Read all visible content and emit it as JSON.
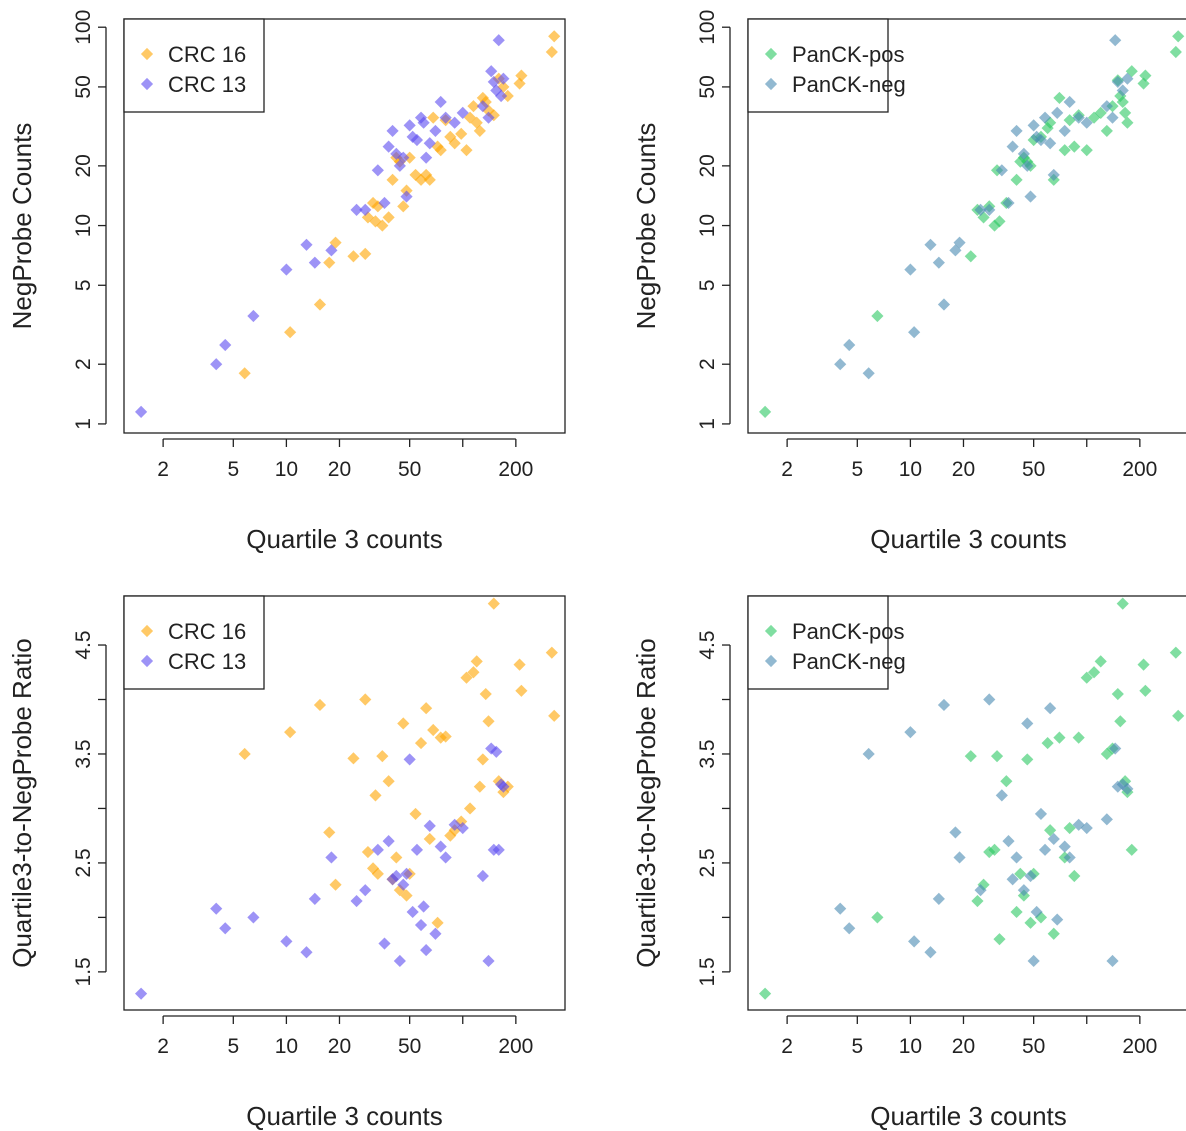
{
  "chart_data": [
    {
      "type": "scatter",
      "xlabel": "Quartile 3 counts",
      "ylabel": "NegProbe Counts",
      "xscale": "log",
      "yscale": "log",
      "xlim": [
        1.2,
        380
      ],
      "ylim": [
        0.9,
        110
      ],
      "xticks": [
        "2",
        "5",
        "10",
        "20",
        "50",
        "200"
      ],
      "yticks": [
        "1",
        "2",
        "5",
        "10",
        "20",
        "50",
        "100"
      ],
      "legend_position": "top-left",
      "series": [
        {
          "name": "CRC 16",
          "color": "#FFA500",
          "x": [
            5.8,
            10.5,
            15.5,
            17.5,
            19,
            24,
            28,
            29,
            31,
            32,
            33,
            35,
            38,
            40,
            42,
            44,
            46,
            48,
            50,
            54,
            58,
            62,
            65,
            68,
            72,
            75,
            80,
            85,
            90,
            98,
            105,
            110,
            115,
            120,
            125,
            130,
            135,
            140,
            150,
            160,
            170,
            180,
            210,
            215,
            320,
            330
          ],
          "y": [
            1.8,
            2.9,
            4.0,
            6.5,
            8.2,
            7.0,
            7.2,
            11,
            13,
            10.5,
            12.5,
            10,
            11,
            17,
            22,
            21,
            12.5,
            15,
            22,
            18,
            17,
            18,
            17,
            35,
            25,
            24,
            34,
            28,
            26,
            29,
            24,
            35,
            40,
            33,
            30,
            44,
            42,
            38,
            36,
            55,
            50,
            45,
            52,
            57,
            75,
            90
          ]
        },
        {
          "name": "CRC 13",
          "color": "#5B4BF0",
          "x": [
            1.5,
            4.0,
            4.5,
            6.5,
            10,
            13,
            14.5,
            18,
            25,
            28,
            33,
            36,
            38,
            40,
            42,
            44,
            46,
            48,
            50,
            52,
            55,
            58,
            60,
            62,
            65,
            70,
            75,
            80,
            90,
            100,
            130,
            140,
            145,
            150,
            155,
            160,
            165,
            170
          ],
          "y": [
            1.15,
            2.0,
            2.5,
            3.5,
            6.0,
            8.0,
            6.5,
            7.5,
            12,
            12,
            19,
            13,
            25,
            30,
            23,
            20,
            22,
            14,
            32,
            28,
            27,
            35,
            33,
            22,
            26,
            30,
            42,
            35,
            33,
            37,
            40,
            35,
            60,
            53,
            48,
            86,
            45,
            55
          ]
        }
      ]
    },
    {
      "type": "scatter",
      "xlabel": "Quartile 3 counts",
      "ylabel": "NegProbe Counts",
      "xscale": "log",
      "yscale": "log",
      "xlim": [
        1.2,
        380
      ],
      "ylim": [
        0.9,
        110
      ],
      "xticks": [
        "2",
        "5",
        "10",
        "20",
        "50",
        "200"
      ],
      "yticks": [
        "1",
        "2",
        "5",
        "10",
        "20",
        "50",
        "100"
      ],
      "legend_position": "top-left",
      "series": [
        {
          "name": "PanCK-pos",
          "color": "#2CC862",
          "x": [
            1.5,
            6.5,
            22,
            24,
            26,
            28,
            30,
            31,
            32,
            35,
            40,
            42,
            44,
            46,
            48,
            50,
            55,
            60,
            62,
            65,
            70,
            75,
            80,
            85,
            90,
            100,
            110,
            120,
            130,
            140,
            150,
            155,
            160,
            165,
            170,
            180,
            210,
            215,
            320,
            330
          ],
          "y": [
            1.15,
            3.5,
            7.0,
            12,
            11,
            12.5,
            10,
            19,
            10.5,
            13,
            17,
            21,
            22,
            21,
            20,
            27,
            28,
            31,
            33,
            17,
            44,
            24,
            34,
            25,
            36,
            24,
            35,
            37,
            30,
            40,
            54,
            45,
            42,
            37,
            33,
            60,
            52,
            57,
            75,
            90
          ]
        },
        {
          "name": "PanCK-neg",
          "color": "#4A8AB3",
          "x": [
            4.0,
            4.5,
            5.8,
            10,
            10.5,
            13,
            14.5,
            15.5,
            18,
            19,
            25,
            28,
            33,
            36,
            38,
            40,
            44,
            46,
            48,
            50,
            52,
            55,
            58,
            62,
            65,
            68,
            75,
            80,
            90,
            100,
            130,
            140,
            145,
            150,
            160,
            170
          ],
          "y": [
            2.0,
            2.5,
            1.8,
            6.0,
            2.9,
            8.0,
            6.5,
            4.0,
            7.5,
            8.2,
            12,
            12,
            19,
            13,
            25,
            30,
            23,
            20,
            14,
            32,
            28,
            27,
            35,
            26,
            18,
            37,
            30,
            42,
            35,
            33,
            40,
            35,
            86,
            53,
            48,
            55
          ]
        }
      ]
    },
    {
      "type": "scatter",
      "xlabel": "Quartile 3 counts",
      "ylabel": "Quartile3-to-NegProbe Ratio",
      "xscale": "log",
      "yscale": "linear",
      "xlim": [
        1.2,
        380
      ],
      "ylim": [
        1.15,
        4.95
      ],
      "xticks": [
        "2",
        "5",
        "10",
        "20",
        "50",
        "200"
      ],
      "yticks": [
        "1.5",
        "2.5",
        "3.5",
        "4.5"
      ],
      "legend_position": "top-left",
      "series": [
        {
          "name": "CRC 16",
          "color": "#FFA500",
          "x": [
            5.8,
            10.5,
            15.5,
            17.5,
            19,
            24,
            28,
            29,
            31,
            32,
            33,
            35,
            38,
            40,
            42,
            44,
            46,
            48,
            50,
            54,
            58,
            62,
            65,
            68,
            72,
            75,
            80,
            85,
            90,
            98,
            105,
            110,
            115,
            120,
            125,
            130,
            135,
            140,
            150,
            160,
            170,
            180,
            210,
            215,
            320,
            330
          ],
          "y": [
            3.5,
            3.7,
            3.95,
            2.78,
            2.3,
            3.46,
            4.0,
            2.6,
            2.45,
            3.12,
            2.4,
            3.48,
            3.25,
            2.35,
            2.55,
            2.25,
            3.78,
            2.2,
            2.4,
            2.95,
            3.6,
            3.92,
            2.72,
            3.72,
            1.95,
            3.65,
            3.66,
            2.75,
            2.8,
            2.88,
            4.2,
            3.0,
            4.25,
            4.35,
            3.2,
            3.45,
            4.05,
            3.8,
            4.88,
            3.25,
            3.15,
            3.2,
            4.32,
            4.08,
            4.43,
            3.85
          ]
        },
        {
          "name": "CRC 13",
          "color": "#5B4BF0",
          "x": [
            1.5,
            4.0,
            4.5,
            6.5,
            10,
            13,
            14.5,
            18,
            25,
            28,
            33,
            36,
            38,
            40,
            42,
            44,
            46,
            48,
            50,
            52,
            55,
            58,
            60,
            62,
            65,
            70,
            75,
            80,
            90,
            100,
            130,
            140,
            145,
            150,
            155,
            160,
            165,
            170
          ],
          "y": [
            1.3,
            2.08,
            1.9,
            2.0,
            1.78,
            1.68,
            2.17,
            2.55,
            2.15,
            2.25,
            2.62,
            1.76,
            2.7,
            2.35,
            2.38,
            1.6,
            2.3,
            2.4,
            3.45,
            2.05,
            2.62,
            1.93,
            2.1,
            1.7,
            2.84,
            1.85,
            2.65,
            2.55,
            2.85,
            2.82,
            2.38,
            1.6,
            3.55,
            2.62,
            3.52,
            2.62,
            3.22,
            3.2
          ]
        }
      ]
    },
    {
      "type": "scatter",
      "xlabel": "Quartile 3 counts",
      "ylabel": "Quartile3-to-NegProbe Ratio",
      "xscale": "log",
      "yscale": "linear",
      "xlim": [
        1.2,
        380
      ],
      "ylim": [
        1.15,
        4.95
      ],
      "xticks": [
        "2",
        "5",
        "10",
        "20",
        "50",
        "200"
      ],
      "yticks": [
        "1.5",
        "2.5",
        "3.5",
        "4.5"
      ],
      "legend_position": "top-left",
      "series": [
        {
          "name": "PanCK-pos",
          "color": "#2CC862",
          "x": [
            1.5,
            6.5,
            22,
            24,
            26,
            28,
            30,
            31,
            32,
            35,
            40,
            42,
            44,
            46,
            48,
            50,
            55,
            60,
            62,
            65,
            70,
            75,
            80,
            85,
            90,
            100,
            110,
            120,
            130,
            140,
            150,
            155,
            160,
            165,
            170,
            180,
            210,
            215,
            320,
            330
          ],
          "y": [
            1.3,
            2.0,
            3.48,
            2.15,
            2.3,
            2.6,
            2.62,
            3.48,
            1.8,
            3.25,
            2.05,
            2.4,
            2.2,
            3.45,
            1.95,
            2.4,
            2.0,
            3.6,
            2.8,
            1.85,
            3.65,
            2.55,
            2.82,
            2.38,
            3.65,
            4.2,
            4.25,
            4.35,
            3.5,
            3.55,
            4.05,
            3.8,
            4.88,
            3.25,
            3.15,
            2.62,
            4.32,
            4.08,
            4.43,
            3.85
          ]
        },
        {
          "name": "PanCK-neg",
          "color": "#4A8AB3",
          "x": [
            4.0,
            4.5,
            5.8,
            10,
            10.5,
            13,
            14.5,
            15.5,
            18,
            19,
            25,
            28,
            33,
            36,
            38,
            40,
            44,
            46,
            48,
            50,
            52,
            55,
            58,
            62,
            65,
            68,
            75,
            80,
            90,
            100,
            130,
            140,
            145,
            150,
            160,
            170
          ],
          "y": [
            2.08,
            1.9,
            3.5,
            3.7,
            1.78,
            1.68,
            2.17,
            3.95,
            2.78,
            2.55,
            2.25,
            4.0,
            3.12,
            2.7,
            2.35,
            2.55,
            2.25,
            3.78,
            2.38,
            1.6,
            2.05,
            2.95,
            2.62,
            3.92,
            2.72,
            1.98,
            2.65,
            2.55,
            2.85,
            2.82,
            2.9,
            1.6,
            3.55,
            3.2,
            3.22,
            3.18
          ]
        }
      ]
    }
  ]
}
